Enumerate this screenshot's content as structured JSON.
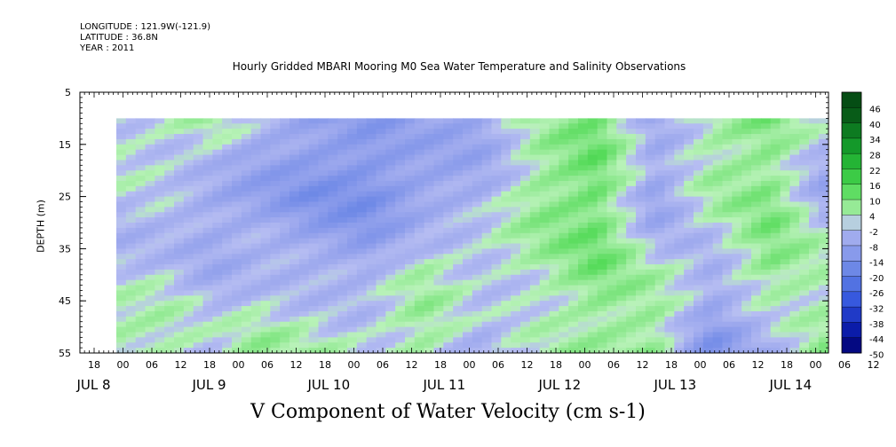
{
  "header": {
    "longitude": "LONGITUDE : 121.9W(-121.9)",
    "latitude": "LATITUDE : 36.8N",
    "year": "YEAR : 2011"
  },
  "chart_data": {
    "type": "heatmap",
    "title": "Hourly Gridded MBARI Mooring M0 Sea Water Temperature and Salinity Observations",
    "xlabel": "V Component of Water Velocity (cm s-1)",
    "ylabel": "DEPTH (m)",
    "y_axis": {
      "range": [
        5,
        55
      ],
      "ticks": [
        5,
        15,
        25,
        35,
        45,
        55
      ],
      "inverted": true,
      "data_range": [
        10,
        55
      ]
    },
    "x_axis": {
      "hour_tick_labels": [
        "18",
        "00",
        "06",
        "12",
        "18",
        "00",
        "06",
        "12",
        "18",
        "00",
        "06",
        "12",
        "18",
        "00",
        "06",
        "12",
        "18",
        "00",
        "06",
        "12",
        "18",
        "00",
        "06",
        "12",
        "18",
        "00",
        "06",
        "12",
        "18",
        "00"
      ],
      "day_labels": [
        "JUL  8",
        "JUL  9",
        "JUL 10",
        "JUL 11",
        "JUL 12",
        "JUL 13",
        "JUL 14"
      ],
      "first_hour_label": "18 (Jul 7)",
      "last_hour_label": "00 (Jul 15)"
    },
    "colorbar": {
      "labels": [
        "46",
        "40",
        "34",
        "28",
        "22",
        "16",
        "10",
        "4",
        "-2",
        "-8",
        "-14",
        "-20",
        "-26",
        "-32",
        "-38",
        "-44",
        "-50"
      ],
      "range": [
        -50,
        46
      ],
      "levels": [
        {
          "v": -50,
          "color": "#00006e"
        },
        {
          "v": -40,
          "color": "#0c1fb0"
        },
        {
          "v": -30,
          "color": "#3355dd"
        },
        {
          "v": -20,
          "color": "#5f7fe4"
        },
        {
          "v": -12,
          "color": "#8497ea"
        },
        {
          "v": -5,
          "color": "#a0abee"
        },
        {
          "v": 0,
          "color": "#b6bdf2"
        },
        {
          "v": 3,
          "color": "#b8f2b8"
        },
        {
          "v": 8,
          "color": "#8de88e"
        },
        {
          "v": 14,
          "color": "#56db5a"
        },
        {
          "v": 22,
          "color": "#2cc23a"
        },
        {
          "v": 32,
          "color": "#119428"
        },
        {
          "v": 46,
          "color": "#054d14"
        }
      ]
    },
    "columns": [
      {
        "t": 0,
        "v": [
          2,
          0,
          -2,
          6
        ]
      },
      {
        "t": 10,
        "v": [
          3,
          -2,
          0,
          4
        ]
      },
      {
        "t": 20,
        "v": [
          5,
          -6,
          -4,
          0
        ]
      },
      {
        "t": 30,
        "v": [
          -4,
          -8,
          -2,
          5
        ]
      },
      {
        "t": 40,
        "v": [
          -8,
          -12,
          -4,
          4
        ]
      },
      {
        "t": 52,
        "v": [
          -10,
          -14,
          -6,
          2
        ]
      },
      {
        "t": 64,
        "v": [
          -6,
          -8,
          4,
          6
        ]
      },
      {
        "t": 76,
        "v": [
          -6,
          -4,
          2,
          -4
        ]
      },
      {
        "t": 88,
        "v": [
          4,
          8,
          4,
          2
        ]
      },
      {
        "t": 100,
        "v": [
          10,
          12,
          10,
          6
        ]
      },
      {
        "t": 112,
        "v": [
          -4,
          -8,
          2,
          8
        ]
      },
      {
        "t": 124,
        "v": [
          6,
          4,
          -2,
          -12
        ]
      },
      {
        "t": 136,
        "v": [
          9,
          8,
          10,
          -4
        ]
      },
      {
        "t": 148,
        "v": [
          -2,
          -6,
          4,
          6
        ]
      },
      {
        "t": 160,
        "v": [
          -10,
          -14,
          -6,
          0
        ]
      },
      {
        "t": 172,
        "v": [
          4,
          -6,
          -10,
          -8
        ]
      },
      {
        "t": 184,
        "v": [
          -14,
          -16,
          -18,
          -6
        ]
      },
      {
        "t": 196,
        "v": [
          -10,
          -12,
          -20,
          -10
        ]
      },
      {
        "t": 208,
        "v": [
          -12,
          -14,
          -8,
          -4
        ]
      },
      {
        "t": 220,
        "v": [
          -8,
          -6,
          -2,
          -8
        ]
      },
      {
        "t": 232,
        "v": [
          -4,
          -2,
          4,
          -12
        ]
      },
      {
        "t": 244,
        "v": [
          2,
          4,
          0,
          -14
        ]
      },
      {
        "t": 256,
        "v": [
          6,
          4,
          -4,
          -6
        ]
      },
      {
        "t": 268,
        "v": [
          -8,
          -2,
          4,
          2
        ]
      },
      {
        "t": 280,
        "v": [
          -10,
          -12,
          -8,
          -12
        ]
      },
      {
        "t": 292,
        "v": [
          -12,
          -14,
          -10,
          -16
        ]
      },
      {
        "t": 304,
        "v": [
          -6,
          -8,
          -12,
          -18
        ]
      },
      {
        "t": 316,
        "v": [
          2,
          -4,
          -10,
          -6
        ]
      },
      {
        "t": 328,
        "v": [
          -12,
          -10,
          8,
          4
        ]
      },
      {
        "t": 340,
        "v": [
          -10,
          -8,
          -2,
          -14
        ]
      },
      {
        "t": 352,
        "v": [
          -8,
          -6,
          -12,
          -18
        ]
      },
      {
        "t": 364,
        "v": [
          -2,
          4,
          2,
          6
        ]
      },
      {
        "t": 376,
        "v": [
          8,
          10,
          12,
          8
        ]
      },
      {
        "t": 382,
        "v": [
          4,
          6,
          10,
          12
        ]
      }
    ]
  }
}
